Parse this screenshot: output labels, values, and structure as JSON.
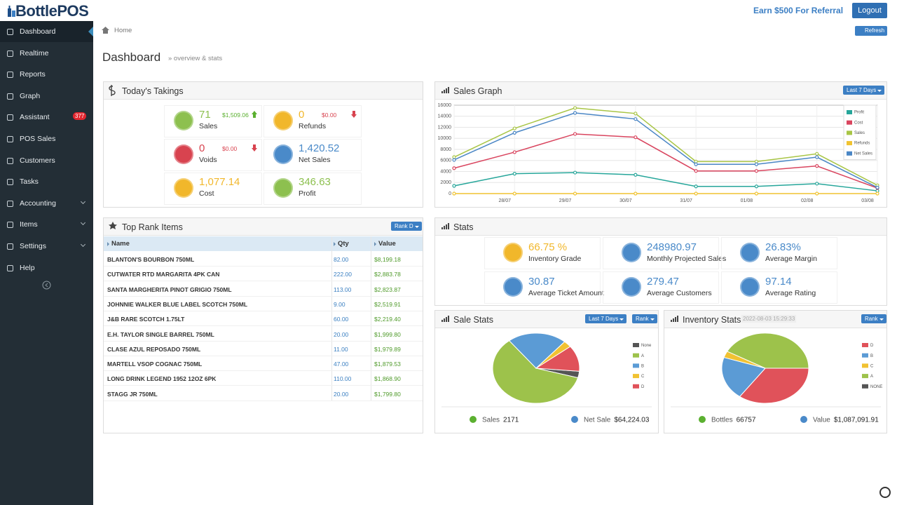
{
  "header": {
    "logo": "BottlePOS",
    "referral": "Earn $500 For Referral",
    "logout": "Logout"
  },
  "sidebar": {
    "items": [
      {
        "label": "Dashboard"
      },
      {
        "label": "Realtime"
      },
      {
        "label": "Reports"
      },
      {
        "label": "Graph"
      },
      {
        "label": "Assistant",
        "badge": "377"
      },
      {
        "label": "POS Sales"
      },
      {
        "label": "Customers"
      },
      {
        "label": "Tasks"
      },
      {
        "label": "Accounting",
        "expandable": true
      },
      {
        "label": "Items",
        "expandable": true
      },
      {
        "label": "Settings",
        "expandable": true
      },
      {
        "label": "Help"
      }
    ]
  },
  "breadcrumb": "Home",
  "refresh": "Refresh",
  "page": {
    "title": "Dashboard",
    "subtitle": "» overview & stats"
  },
  "takings": {
    "title": "Today's Takings",
    "tiles": [
      {
        "value": "71",
        "label": "Sales",
        "amount": "$1,509.06",
        "trend": "up"
      },
      {
        "value": "0",
        "label": "Refunds",
        "amount": "$0.00",
        "trend": "down"
      },
      {
        "value": "0",
        "label": "Voids",
        "amount": "$0.00",
        "trend": "down"
      },
      {
        "value": "1,420.52",
        "label": "Net Sales"
      },
      {
        "value": "1,077.14",
        "label": "Cost"
      },
      {
        "value": "346.63",
        "label": "Profit"
      }
    ]
  },
  "top_rank": {
    "title": "Top Rank Items",
    "button": "Rank D",
    "columns": [
      "Name",
      "Qty",
      "Value"
    ],
    "rows": [
      [
        "BLANTON'S BOURBON 750ML",
        "82.00",
        "$8,199.18"
      ],
      [
        "CUTWATER RTD MARGARITA 4PK CAN",
        "222.00",
        "$2,883.78"
      ],
      [
        "SANTA MARGHERITA PINOT GRIGIO 750ML",
        "113.00",
        "$2,823.87"
      ],
      [
        "JOHNNIE WALKER BLUE LABEL SCOTCH 750ML",
        "9.00",
        "$2,519.91"
      ],
      [
        "J&B RARE SCOTCH 1.75LT",
        "60.00",
        "$2,219.40"
      ],
      [
        "E.H. TAYLOR SINGLE BARREL 750ML",
        "20.00",
        "$1,999.80"
      ],
      [
        "CLASE AZUL REPOSADO 750ML",
        "11.00",
        "$1,979.89"
      ],
      [
        "MARTELL VSOP COGNAC 750ML",
        "47.00",
        "$1,879.53"
      ],
      [
        "LONG DRINK LEGEND 1952 12OZ 6PK",
        "110.00",
        "$1,868.90"
      ],
      [
        "STAGG JR 750ML",
        "20.00",
        "$1,799.80"
      ]
    ]
  },
  "stats": {
    "title": "Stats",
    "tiles": [
      {
        "value": "66.75 %",
        "label": "Inventory Grade"
      },
      {
        "value": "248980.97",
        "label": "Monthly Projected Sales"
      },
      {
        "value": "26.83%",
        "label": "Average Margin"
      },
      {
        "value": "30.87",
        "label": "Average Ticket Amount"
      },
      {
        "value": "279.47",
        "label": "Average Customers"
      },
      {
        "value": "97.14",
        "label": "Average Rating"
      }
    ]
  },
  "chart_data": [
    {
      "type": "line",
      "title": "Sales Graph",
      "button": "Last 7 Days",
      "categories": [
        null,
        "28/07",
        "29/07",
        "30/07",
        "31/07",
        "01/08",
        "02/08",
        "03/08"
      ],
      "ylim": [
        0,
        16000
      ],
      "yticks": [
        0,
        2000,
        4000,
        6000,
        8000,
        10000,
        12000,
        14000,
        16000
      ],
      "grid": true,
      "legend": "upper right",
      "series": [
        {
          "name": "Profit",
          "color": "#26a69a",
          "values": [
            1400,
            3600,
            3800,
            3400,
            1300,
            1300,
            1800,
            500
          ]
        },
        {
          "name": "Cost",
          "color": "#d9445e",
          "values": [
            4600,
            7500,
            10800,
            10200,
            4100,
            4100,
            5000,
            1000
          ]
        },
        {
          "name": "Sales",
          "color": "#a8c545",
          "values": [
            6600,
            11800,
            15500,
            14500,
            5800,
            5800,
            7200,
            1500
          ]
        },
        {
          "name": "Refunds",
          "color": "#f0c330",
          "values": [
            0,
            0,
            0,
            0,
            0,
            0,
            0,
            0
          ]
        },
        {
          "name": "Net Sales",
          "color": "#4a86c5",
          "values": [
            6100,
            11000,
            14600,
            13500,
            5300,
            5300,
            6600,
            1100
          ]
        }
      ]
    },
    {
      "type": "pie",
      "title": "Sale Stats",
      "buttons": [
        "Last 7 Days",
        "Rank"
      ],
      "categories": [
        "None",
        "A",
        "B",
        "C",
        "D"
      ],
      "values": [
        3,
        60,
        22,
        3,
        12
      ],
      "colors": [
        "#555555",
        "#9dc24b",
        "#5b9bd5",
        "#f1c232",
        "#e0525a"
      ],
      "footer": [
        {
          "label": "Sales",
          "value": "2171"
        },
        {
          "label": "Net Sale",
          "value": "$64,224.03"
        }
      ]
    },
    {
      "type": "pie",
      "title": "Inventory Stats",
      "timestamp": "2022-08-03 15:29:33",
      "buttons": [
        "Rank"
      ],
      "categories": [
        "D",
        "B",
        "C",
        "A",
        "NONE"
      ],
      "values": [
        35,
        20,
        3,
        42,
        0
      ],
      "colors": [
        "#e0525a",
        "#5b9bd5",
        "#f1c232",
        "#9dc24b",
        "#555555"
      ],
      "footer": [
        {
          "label": "Bottles",
          "value": "66757"
        },
        {
          "label": "Value",
          "value": "$1,087,091.91"
        }
      ]
    }
  ]
}
